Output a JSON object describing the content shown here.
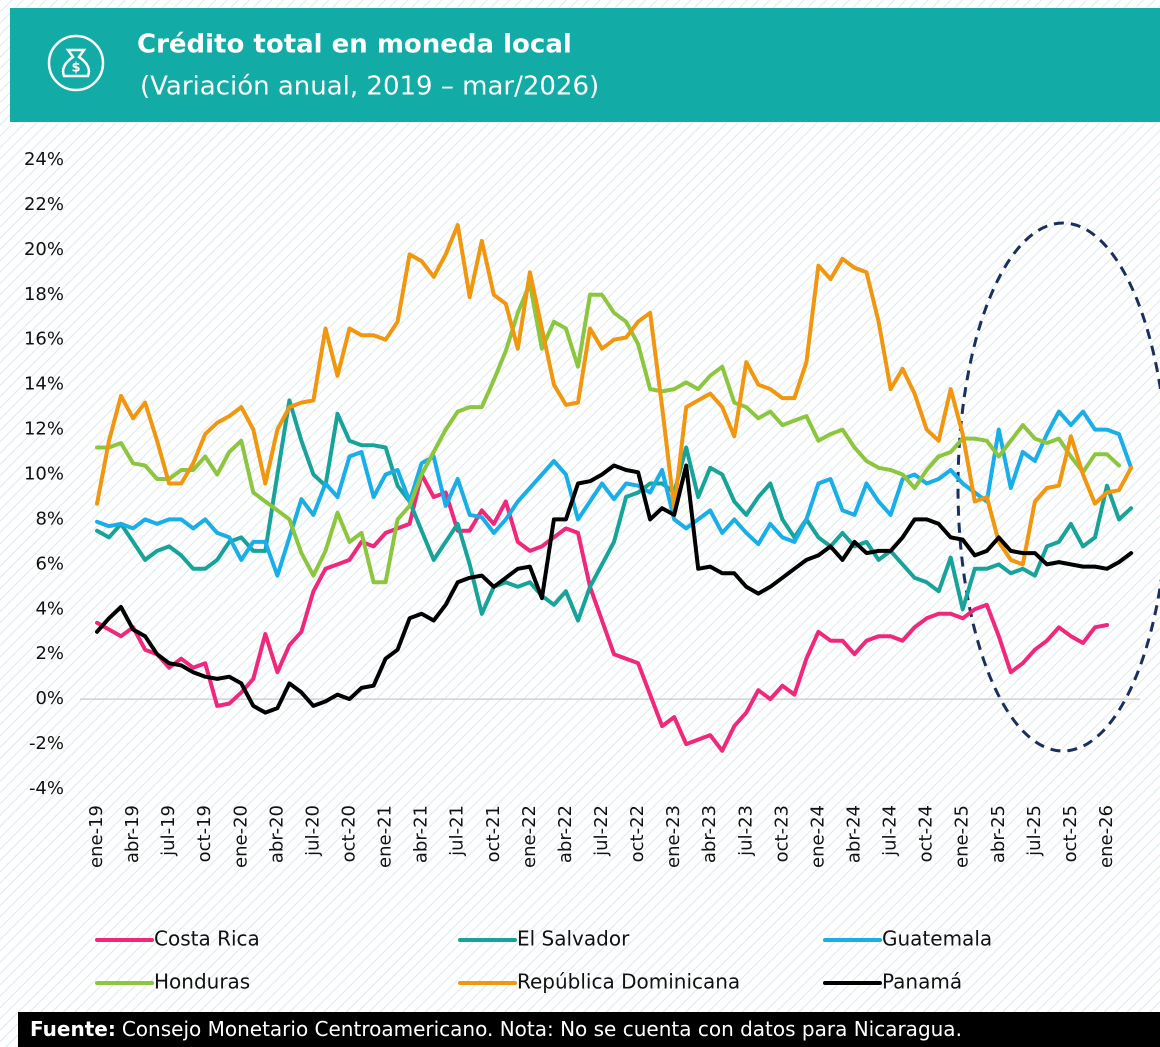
{
  "chart_data": {
    "type": "line",
    "title": "Crédito total en moneda local",
    "subtitle": "(Variación anual, 2019 – mar/2026)",
    "source_label": "Fuente:",
    "source": "Consejo Monetario Centroamericano. Nota: No se cuenta con datos para Nicaragua.",
    "categories": [
      "ene-19",
      null,
      null,
      "abr-19",
      null,
      null,
      "jul-19",
      null,
      null,
      "oct-19",
      null,
      null,
      "ene-20",
      null,
      null,
      "abr-20",
      null,
      null,
      "jul-20",
      null,
      null,
      "oct-20",
      null,
      null,
      "ene-21",
      null,
      null,
      "abr-21",
      null,
      null,
      "jul-21",
      null,
      null,
      "oct-21",
      null,
      null,
      "ene-22",
      null,
      null,
      "abr-22",
      null,
      null,
      "jul-22",
      null,
      null,
      "oct-22",
      null,
      null,
      "ene-23",
      null,
      null,
      "abr-23",
      null,
      null,
      "jul-23",
      null,
      null,
      "oct-23",
      null,
      null,
      "ene-24",
      null,
      null,
      "abr-24",
      null,
      null,
      "jul-24",
      null,
      null,
      "oct-24",
      null,
      null,
      "ene-25",
      null,
      null,
      "abr-25",
      null,
      null,
      "jul-25",
      null,
      null,
      "oct-25",
      null,
      null,
      "ene-26",
      null,
      null
    ],
    "series": [
      {
        "name": "Costa Rica",
        "color": "#f0287c",
        "values": [
          3.4,
          3.1,
          2.8,
          3.2,
          2.2,
          2.0,
          1.4,
          1.8,
          1.4,
          1.6,
          -0.3,
          -0.2,
          0.3,
          0.9,
          2.9,
          1.2,
          2.4,
          3.0,
          4.8,
          5.8,
          6.0,
          6.2,
          7.0,
          6.8,
          7.4,
          7.6,
          7.8,
          10.0,
          9.0,
          9.2,
          7.5,
          7.5,
          8.4,
          7.8,
          8.8,
          7.0,
          6.6,
          6.8,
          7.2,
          7.6,
          7.4,
          5.0,
          3.5,
          2.0,
          1.8,
          1.6,
          0.2,
          -1.2,
          -0.8,
          -2.0,
          -1.8,
          -1.6,
          -2.3,
          -1.2,
          -0.6,
          0.4,
          0.0,
          0.6,
          0.2,
          1.8,
          3.0,
          2.6,
          2.6,
          2.0,
          2.6,
          2.8,
          2.8,
          2.6,
          3.2,
          3.6,
          3.8,
          3.8,
          3.6,
          4.0,
          4.2,
          2.8,
          1.2,
          1.6,
          2.2,
          2.6,
          3.2,
          2.8,
          2.5,
          3.2,
          3.3,
          null,
          null
        ]
      },
      {
        "name": "El Salvador",
        "color": "#17a39a",
        "values": [
          7.5,
          7.2,
          7.8,
          7.0,
          6.2,
          6.6,
          6.8,
          6.4,
          5.8,
          5.8,
          6.2,
          7.0,
          7.2,
          6.6,
          6.6,
          10.0,
          13.3,
          11.5,
          10.0,
          9.5,
          12.7,
          11.5,
          11.3,
          11.3,
          11.2,
          9.5,
          8.8,
          7.5,
          6.2,
          7.0,
          7.8,
          6.0,
          3.8,
          5.0,
          5.2,
          5.0,
          5.2,
          4.6,
          4.2,
          4.8,
          3.5,
          5.0,
          6.0,
          7.0,
          9.0,
          9.2,
          9.6,
          9.6,
          9.2,
          11.2,
          9.0,
          10.3,
          10.0,
          8.8,
          8.2,
          9.0,
          9.6,
          8.0,
          7.2,
          8.0,
          7.2,
          6.8,
          7.4,
          6.8,
          7.0,
          6.2,
          6.6,
          6.0,
          5.4,
          5.2,
          4.8,
          6.3,
          4.0,
          5.8,
          5.8,
          6.0,
          5.6,
          5.8,
          5.5,
          6.8,
          7.0,
          7.8,
          6.8,
          7.2,
          9.5,
          8.0,
          8.5
        ]
      },
      {
        "name": "Guatemala",
        "color": "#19aee8",
        "values": [
          7.9,
          7.7,
          7.8,
          7.6,
          8.0,
          7.8,
          8.0,
          8.0,
          7.6,
          8.0,
          7.4,
          7.2,
          6.2,
          7.0,
          7.0,
          5.5,
          7.2,
          8.9,
          8.2,
          9.6,
          9.0,
          10.8,
          11.0,
          9.0,
          10.0,
          10.2,
          8.8,
          10.5,
          10.8,
          8.6,
          9.8,
          8.2,
          8.1,
          7.4,
          8.0,
          8.8,
          9.4,
          10.0,
          10.6,
          10.0,
          8.0,
          8.8,
          9.6,
          8.9,
          9.6,
          9.5,
          9.2,
          10.2,
          8.0,
          7.6,
          8.0,
          8.4,
          7.4,
          8.0,
          7.4,
          6.9,
          7.8,
          7.2,
          7.0,
          8.0,
          9.6,
          9.8,
          8.4,
          8.2,
          9.6,
          8.8,
          8.2,
          9.8,
          10.0,
          9.6,
          9.8,
          10.2,
          9.6,
          9.2,
          8.8,
          12.0,
          9.4,
          11.0,
          10.6,
          11.8,
          12.8,
          12.2,
          12.8,
          12.0,
          12.0,
          11.8,
          10.3
        ]
      },
      {
        "name": "Honduras",
        "color": "#8cc63f",
        "values": [
          11.2,
          11.2,
          11.4,
          10.5,
          10.4,
          9.8,
          9.8,
          10.2,
          10.2,
          10.8,
          10.0,
          11.0,
          11.5,
          9.2,
          8.8,
          8.4,
          8.0,
          6.5,
          5.5,
          6.6,
          8.3,
          7.0,
          7.4,
          5.2,
          5.2,
          8.0,
          8.6,
          10.0,
          11.0,
          12.0,
          12.8,
          13.0,
          13.0,
          14.2,
          15.5,
          17.2,
          18.5,
          15.6,
          16.8,
          16.5,
          14.8,
          18.0,
          18.0,
          17.2,
          16.8,
          15.8,
          13.8,
          13.7,
          13.8,
          14.1,
          13.8,
          14.4,
          14.8,
          13.2,
          13.0,
          12.5,
          12.8,
          12.2,
          12.4,
          12.6,
          11.5,
          11.8,
          12.0,
          11.2,
          10.6,
          10.3,
          10.2,
          10.0,
          9.4,
          10.2,
          10.8,
          11.0,
          11.6,
          11.6,
          11.5,
          10.8,
          11.5,
          12.2,
          11.6,
          11.4,
          11.6,
          10.8,
          10.1,
          10.9,
          10.9,
          10.4,
          null
        ]
      },
      {
        "name": "República Dominicana",
        "color": "#f0960f",
        "values": [
          8.7,
          11.5,
          13.5,
          12.5,
          13.2,
          11.5,
          9.6,
          9.6,
          10.5,
          11.8,
          12.3,
          12.6,
          13.0,
          12.0,
          9.6,
          12.0,
          13.0,
          13.2,
          13.3,
          16.5,
          14.4,
          16.5,
          16.2,
          16.2,
          16.0,
          16.8,
          19.8,
          19.5,
          18.8,
          19.8,
          21.1,
          17.9,
          20.4,
          18.0,
          17.6,
          15.6,
          19.0,
          16.5,
          14.0,
          13.1,
          13.2,
          16.5,
          15.6,
          16.0,
          16.1,
          16.8,
          17.2,
          13.0,
          8.5,
          13.0,
          13.3,
          13.6,
          13.0,
          11.7,
          15.0,
          14.0,
          13.8,
          13.4,
          13.4,
          15.0,
          19.3,
          18.7,
          19.6,
          19.2,
          19.0,
          16.8,
          13.8,
          14.7,
          13.6,
          12.0,
          11.5,
          13.8,
          11.8,
          8.8,
          9.0,
          7.0,
          6.2,
          6.0,
          8.8,
          9.4,
          9.5,
          11.7,
          10.0,
          8.7,
          9.2,
          9.3,
          10.3
        ]
      },
      {
        "name": "Panamá",
        "color": "#000000",
        "values": [
          3.0,
          3.6,
          4.1,
          3.1,
          2.8,
          2.0,
          1.6,
          1.5,
          1.2,
          1.0,
          0.9,
          1.0,
          0.7,
          -0.3,
          -0.6,
          -0.4,
          0.7,
          0.3,
          -0.3,
          -0.1,
          0.2,
          0.0,
          0.5,
          0.6,
          1.8,
          2.2,
          3.6,
          3.8,
          3.5,
          4.2,
          5.2,
          5.4,
          5.5,
          5.0,
          5.4,
          5.8,
          5.9,
          4.5,
          8.0,
          8.0,
          9.6,
          9.7,
          10.0,
          10.4,
          10.2,
          10.1,
          8.0,
          8.5,
          8.2,
          10.4,
          5.8,
          5.9,
          5.6,
          5.6,
          5.0,
          4.7,
          5.0,
          5.4,
          5.8,
          6.2,
          6.4,
          6.8,
          6.2,
          7.0,
          6.5,
          6.6,
          6.6,
          7.2,
          8.0,
          8.0,
          7.8,
          7.2,
          7.1,
          6.4,
          6.6,
          7.2,
          6.6,
          6.5,
          6.5,
          6.0,
          6.1,
          6.0,
          5.9,
          5.9,
          5.8,
          6.1,
          6.5
        ]
      }
    ],
    "ylim": [
      -4,
      24
    ],
    "yticks": [
      {
        "value": -4,
        "label": "-4%"
      },
      {
        "value": -2,
        "label": "-2%"
      },
      {
        "value": 0,
        "label": "0%"
      },
      {
        "value": 2,
        "label": "2%"
      },
      {
        "value": 4,
        "label": "4%"
      },
      {
        "value": 6,
        "label": "6%"
      },
      {
        "value": 8,
        "label": "8%"
      },
      {
        "value": 10,
        "label": "10%"
      },
      {
        "value": 12,
        "label": "12%"
      },
      {
        "value": 14,
        "label": "14%"
      },
      {
        "value": 16,
        "label": "16%"
      },
      {
        "value": 18,
        "label": "18%"
      },
      {
        "value": 20,
        "label": "20%"
      },
      {
        "value": 22,
        "label": "22%"
      },
      {
        "value": 24,
        "label": "24%"
      }
    ],
    "grid": false,
    "legend": "bottom"
  }
}
